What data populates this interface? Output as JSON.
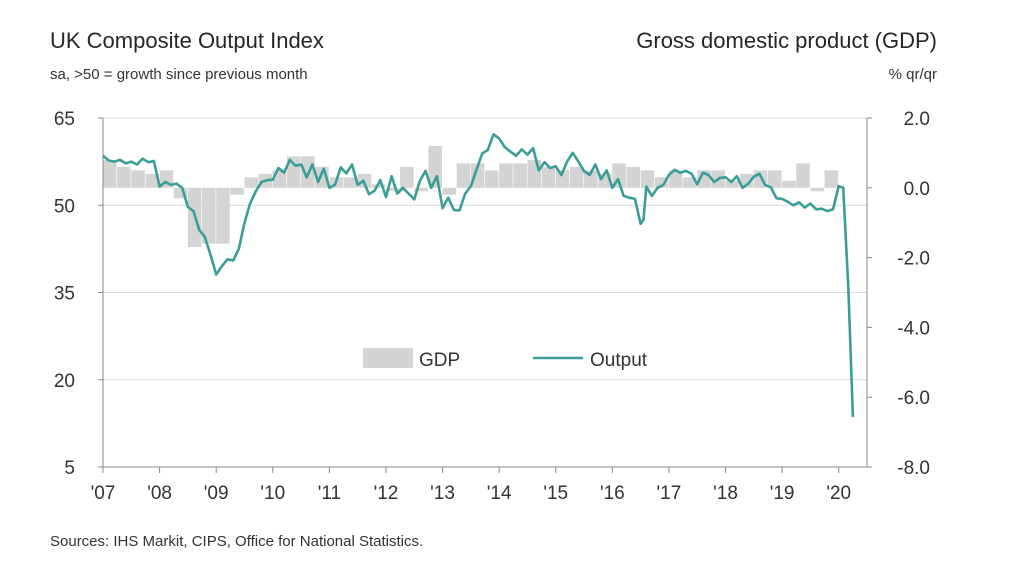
{
  "left_title": "UK Composite Output Index",
  "left_subtitle": "sa, >50 = growth since previous month",
  "right_title": "Gross domestic product (GDP)",
  "right_subtitle": "% qr/qr",
  "source": "Sources: IHS Markit, CIPS, Office for National Statistics.",
  "chart_data": {
    "type": "bar+line",
    "x_tick_labels": [
      "'07",
      "'08",
      "'09",
      "'10",
      "'11",
      "'12",
      "'13",
      "'14",
      "'15",
      "'16",
      "'17",
      "'18",
      "'19",
      "'20"
    ],
    "x_range": [
      2007.0,
      2020.5
    ],
    "left_axis": {
      "range": [
        5,
        65
      ],
      "ticks": [
        "65",
        "50",
        "35",
        "20",
        "5"
      ],
      "tick_values": [
        65,
        50,
        35,
        20,
        5
      ]
    },
    "right_axis": {
      "range": [
        -8.0,
        2.0
      ],
      "ticks": [
        "2.0",
        "0.0",
        "-2.0",
        "-4.0",
        "-6.0",
        "-8.0"
      ],
      "tick_values": [
        2.0,
        0.0,
        -2.0,
        -4.0,
        -6.0,
        -8.0
      ]
    },
    "grid": true,
    "legend": {
      "placement": "center",
      "entries": [
        "GDP",
        "Output"
      ]
    },
    "colors": {
      "gdp": "#d4d4d4",
      "output": "#3a9e97",
      "grid": "#dcdcdc",
      "axis": "#888888"
    },
    "series": [
      {
        "name": "GDP",
        "axis": "right",
        "kind": "bar",
        "quarters": [
          "2007Q1",
          "2007Q2",
          "2007Q3",
          "2007Q4",
          "2008Q1",
          "2008Q2",
          "2008Q3",
          "2008Q4",
          "2009Q1",
          "2009Q2",
          "2009Q3",
          "2009Q4",
          "2010Q1",
          "2010Q2",
          "2010Q3",
          "2010Q4",
          "2011Q1",
          "2011Q2",
          "2011Q3",
          "2011Q4",
          "2012Q1",
          "2012Q2",
          "2012Q3",
          "2012Q4",
          "2013Q1",
          "2013Q2",
          "2013Q3",
          "2013Q4",
          "2014Q1",
          "2014Q2",
          "2014Q3",
          "2014Q4",
          "2015Q1",
          "2015Q2",
          "2015Q3",
          "2015Q4",
          "2016Q1",
          "2016Q2",
          "2016Q3",
          "2016Q4",
          "2017Q1",
          "2017Q2",
          "2017Q3",
          "2017Q4",
          "2018Q1",
          "2018Q2",
          "2018Q3",
          "2018Q4",
          "2019Q1",
          "2019Q2",
          "2019Q3",
          "2019Q4",
          "2020Q1"
        ],
        "values": [
          0.8,
          0.6,
          0.5,
          0.4,
          0.5,
          -0.3,
          -1.7,
          -1.6,
          -1.6,
          -0.2,
          0.3,
          0.4,
          0.5,
          0.9,
          0.9,
          0.6,
          0.3,
          0.3,
          0.4,
          0.1,
          -0.1,
          0.6,
          -0.1,
          1.2,
          -0.2,
          0.7,
          0.7,
          0.5,
          0.7,
          0.7,
          0.8,
          0.6,
          0.5,
          0.6,
          0.5,
          0.4,
          0.7,
          0.6,
          0.5,
          0.3,
          0.5,
          0.3,
          0.5,
          0.5,
          0.2,
          0.4,
          0.5,
          0.5,
          0.2,
          0.7,
          -0.1,
          0.5,
          0.0
        ]
      },
      {
        "name": "Output",
        "axis": "left",
        "kind": "line",
        "x": [
          2007.0,
          2007.1,
          2007.2,
          2007.3,
          2007.4,
          2007.5,
          2007.6,
          2007.7,
          2007.8,
          2007.9,
          2008.0,
          2008.1,
          2008.2,
          2008.3,
          2008.4,
          2008.5,
          2008.6,
          2008.7,
          2008.8,
          2008.9,
          2009.0,
          2009.1,
          2009.2,
          2009.3,
          2009.4,
          2009.5,
          2009.6,
          2009.7,
          2009.8,
          2009.9,
          2010.0,
          2010.1,
          2010.2,
          2010.3,
          2010.4,
          2010.5,
          2010.6,
          2010.7,
          2010.8,
          2010.9,
          2011.0,
          2011.1,
          2011.2,
          2011.3,
          2011.4,
          2011.5,
          2011.6,
          2011.7,
          2011.8,
          2011.9,
          2012.0,
          2012.1,
          2012.2,
          2012.3,
          2012.4,
          2012.5,
          2012.6,
          2012.7,
          2012.8,
          2012.9,
          2013.0,
          2013.1,
          2013.2,
          2013.3,
          2013.4,
          2013.5,
          2013.6,
          2013.7,
          2013.8,
          2013.9,
          2014.0,
          2014.1,
          2014.2,
          2014.3,
          2014.4,
          2014.5,
          2014.6,
          2014.7,
          2014.8,
          2014.9,
          2015.0,
          2015.1,
          2015.2,
          2015.3,
          2015.4,
          2015.5,
          2015.6,
          2015.7,
          2015.8,
          2015.9,
          2016.0,
          2016.1,
          2016.2,
          2016.3,
          2016.4,
          2016.5,
          2016.55,
          2016.6,
          2016.7,
          2016.8,
          2016.9,
          2017.0,
          2017.1,
          2017.2,
          2017.3,
          2017.4,
          2017.5,
          2017.6,
          2017.7,
          2017.8,
          2017.9,
          2018.0,
          2018.1,
          2018.2,
          2018.3,
          2018.4,
          2018.5,
          2018.6,
          2018.7,
          2018.8,
          2018.9,
          2019.0,
          2019.1,
          2019.2,
          2019.3,
          2019.4,
          2019.5,
          2019.6,
          2019.7,
          2019.8,
          2019.9,
          2020.0,
          2020.08,
          2020.17,
          2020.25
        ],
        "values": [
          58.5,
          57.7,
          57.5,
          57.8,
          57.2,
          57.5,
          57.0,
          58.0,
          57.4,
          57.6,
          53.2,
          54.0,
          53.5,
          53.7,
          53.0,
          49.7,
          49.0,
          45.8,
          44.5,
          41.5,
          38.1,
          39.5,
          40.7,
          40.5,
          42.5,
          47.0,
          50.3,
          52.4,
          54.0,
          54.3,
          54.4,
          56.4,
          55.6,
          57.8,
          56.8,
          57.0,
          54.8,
          57.0,
          54.0,
          56.3,
          53.0,
          53.5,
          56.5,
          55.5,
          57.0,
          53.5,
          54.2,
          51.9,
          52.5,
          54.3,
          51.4,
          55.0,
          52.0,
          53.0,
          52.0,
          51.0,
          54.2,
          55.9,
          53.0,
          55.0,
          49.5,
          51.3,
          49.2,
          49.1,
          52.0,
          53.3,
          56.1,
          58.9,
          59.5,
          62.2,
          61.5,
          60.0,
          59.2,
          58.5,
          59.6,
          58.7,
          59.8,
          56.0,
          57.4,
          56.4,
          56.7,
          55.2,
          57.5,
          59.0,
          57.5,
          55.9,
          55.2,
          57.0,
          54.5,
          56.0,
          53.0,
          54.5,
          51.6,
          51.3,
          51.1,
          46.8,
          47.5,
          53.2,
          51.6,
          53.0,
          53.5,
          55.2,
          56.1,
          55.6,
          55.9,
          55.4,
          53.6,
          55.6,
          55.2,
          54.0,
          54.7,
          54.8,
          54.0,
          55.0,
          53.0,
          53.7,
          54.9,
          55.4,
          53.5,
          53.1,
          51.2,
          51.1,
          50.6,
          50.0,
          50.5,
          49.6,
          50.3,
          49.3,
          49.4,
          49.0,
          49.3,
          53.3,
          53.0,
          36.0,
          13.6
        ]
      }
    ]
  }
}
